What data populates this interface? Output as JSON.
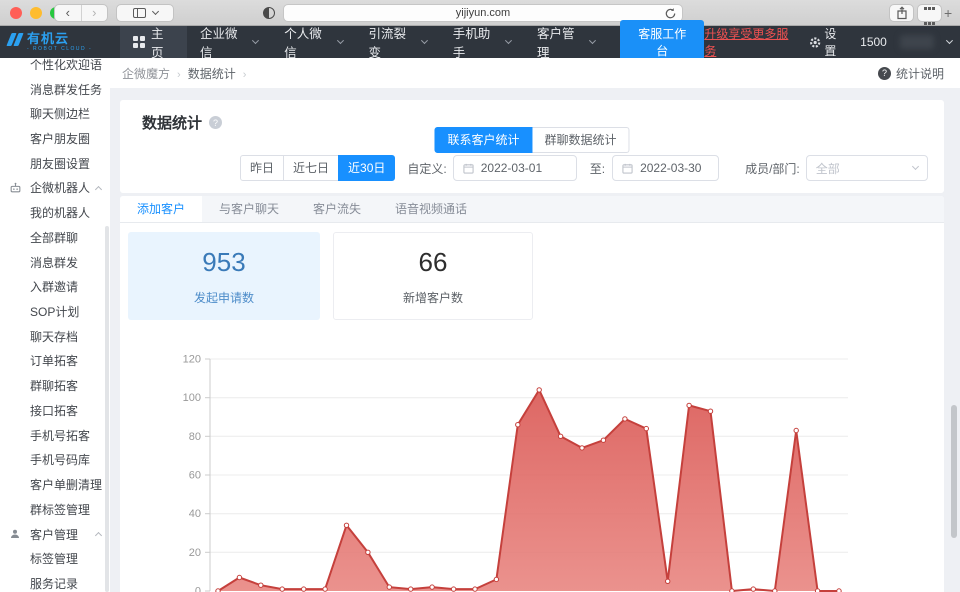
{
  "browser": {
    "url": "yijiyun.com",
    "icons": {
      "back": "‹",
      "forward": "›",
      "new_tab": "+"
    }
  },
  "navbar": {
    "logo_title": "有机云",
    "logo_subtitle": "- ROBOT CLOUD -",
    "items": [
      {
        "key": "home",
        "label": "主页",
        "icon": "grid",
        "active": true
      },
      {
        "key": "work-wechat",
        "label": "企业微信",
        "caret": true
      },
      {
        "key": "personal-wechat",
        "label": "个人微信",
        "caret": true
      },
      {
        "key": "traffic-fission",
        "label": "引流裂变",
        "caret": true
      },
      {
        "key": "phone-assistant",
        "label": "手机助手",
        "caret": true
      },
      {
        "key": "customer-management",
        "label": "客户管理",
        "caret": true
      }
    ],
    "workbench_button": "客服工作台",
    "upgrade_link": "升级享受更多服务",
    "settings_label": "设置",
    "phone_prefix": "1500"
  },
  "sidebar": {
    "items": [
      {
        "key": "personalized-greeting",
        "label": "个性化欢迎语",
        "type": "item"
      },
      {
        "key": "message-group-task",
        "label": "消息群发任务",
        "type": "item"
      },
      {
        "key": "chat-sidebar",
        "label": "聊天侧边栏",
        "type": "item"
      },
      {
        "key": "customer-moments",
        "label": "客户朋友圈",
        "type": "item"
      },
      {
        "key": "moments-settings",
        "label": "朋友圈设置",
        "type": "item"
      },
      {
        "key": "wework-robot",
        "label": "企微机器人",
        "type": "section",
        "icon": "robot"
      },
      {
        "key": "my-robot",
        "label": "我的机器人",
        "type": "item"
      },
      {
        "key": "all-group-chats",
        "label": "全部群聊",
        "type": "item"
      },
      {
        "key": "message-broadcast",
        "label": "消息群发",
        "type": "item"
      },
      {
        "key": "group-invite",
        "label": "入群邀请",
        "type": "item"
      },
      {
        "key": "sop-plan",
        "label": "SOP计划",
        "type": "item"
      },
      {
        "key": "chat-archive",
        "label": "聊天存档",
        "type": "item"
      },
      {
        "key": "order-acquisition",
        "label": "订单拓客",
        "type": "item"
      },
      {
        "key": "group-acquisition",
        "label": "群聊拓客",
        "type": "item"
      },
      {
        "key": "api-acquisition",
        "label": "接口拓客",
        "type": "item"
      },
      {
        "key": "phone-acquisition",
        "label": "手机号拓客",
        "type": "item"
      },
      {
        "key": "phone-number-library",
        "label": "手机号码库",
        "type": "item"
      },
      {
        "key": "single-delete-cleanup",
        "label": "客户单删清理",
        "type": "item"
      },
      {
        "key": "group-tag-management",
        "label": "群标签管理",
        "type": "item"
      },
      {
        "key": "customer-management",
        "label": "客户管理",
        "type": "section",
        "icon": "person"
      },
      {
        "key": "tag-management",
        "label": "标签管理",
        "type": "item"
      },
      {
        "key": "service-records",
        "label": "服务记录",
        "type": "item"
      }
    ]
  },
  "main": {
    "breadcrumb": [
      "企微魔方",
      "数据统计"
    ],
    "breadcrumb_separator": "›",
    "help_link": "统计说明",
    "help_icon_glyph": "?",
    "panel_title": "数据统计",
    "stat_toggle": [
      {
        "key": "contact-customer-stats",
        "label": "联系客户统计",
        "active": true
      },
      {
        "key": "group-chat-stats",
        "label": "群聊数据统计",
        "active": false
      }
    ],
    "date_filters": {
      "buttons": [
        {
          "key": "yesterday",
          "label": "昨日",
          "active": false
        },
        {
          "key": "last-7-days",
          "label": "近七日",
          "active": false
        },
        {
          "key": "last-30-days",
          "label": "近30日",
          "active": true
        }
      ],
      "custom_label": "自定义:",
      "from_value": "2022-03-01",
      "to_label": "至:",
      "to_value": "2022-03-30",
      "member_label": "成员/部门:",
      "member_placeholder": "全部"
    },
    "tabs": [
      {
        "key": "add-customer",
        "label": "添加客户",
        "active": true
      },
      {
        "key": "chat-with-customer",
        "label": "与客户聊天",
        "active": false
      },
      {
        "key": "customer-churn",
        "label": "客户流失",
        "active": false
      },
      {
        "key": "voice-video-call",
        "label": "语音视频通话",
        "active": false
      }
    ],
    "stat_cards": [
      {
        "key": "initiated-requests",
        "value": "953",
        "label": "发起申请数",
        "highlighted": true
      },
      {
        "key": "new-customers",
        "value": "66",
        "label": "新增客户数",
        "highlighted": false
      }
    ]
  },
  "chart_data": {
    "type": "area",
    "series_name": "发起申请数",
    "x_range": [
      "2022-03-01",
      "2022-03-30"
    ],
    "x_labels_visible": false,
    "values": [
      0,
      7,
      3,
      1,
      1,
      1,
      34,
      20,
      2,
      1,
      2,
      1,
      1,
      6,
      86,
      104,
      80,
      74,
      78,
      89,
      84,
      5,
      96,
      93,
      0,
      1,
      0,
      83,
      0,
      0
    ],
    "ylim": [
      0,
      120
    ],
    "yticks": [
      0,
      20,
      40,
      60,
      80,
      100,
      120
    ],
    "grid": true,
    "legend": false,
    "line_color": "#c5403c",
    "fill_color_top": "#d9534f",
    "fill_color_bottom": "#e8837e",
    "axis_color": "#cccccc",
    "gridline_color": "#ececec",
    "tick_label_color": "#999999"
  }
}
